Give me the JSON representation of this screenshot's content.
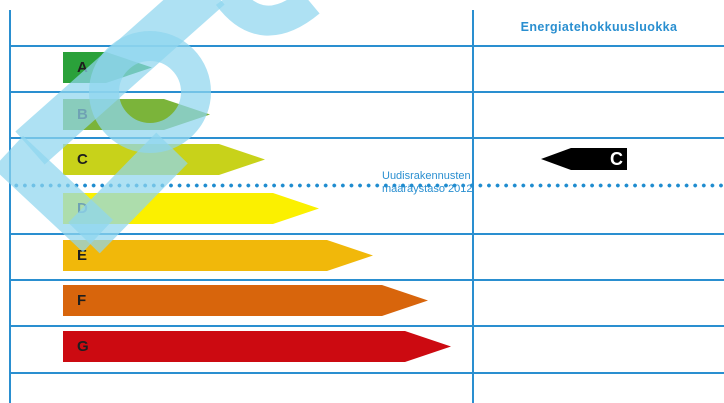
{
  "header": {
    "title": "Energiatehokkuusluokka"
  },
  "energy_classes": [
    {
      "letter": "A",
      "color": "#2aa13a",
      "length_fraction": 0.23
    },
    {
      "letter": "B",
      "color": "#7bb43a",
      "length_fraction": 0.38
    },
    {
      "letter": "C",
      "color": "#c8d21a",
      "length_fraction": 0.52
    },
    {
      "letter": "D",
      "color": "#fbf000",
      "length_fraction": 0.66
    },
    {
      "letter": "E",
      "color": "#f1b80a",
      "length_fraction": 0.8
    },
    {
      "letter": "F",
      "color": "#d8650c",
      "length_fraction": 0.94
    },
    {
      "letter": "G",
      "color": "#cc0a11",
      "length_fraction": 1.0
    }
  ],
  "reference_level": {
    "label_line1": "Uudisrakennusten",
    "label_line2": "määräystaso 2012",
    "line_color": "#1f8ccf"
  },
  "rating": {
    "letter": "C",
    "color": "#000000",
    "text_color": "#ffffff"
  },
  "colors": {
    "grid": "#2a8fd0",
    "watermark": "#8fd6ee"
  }
}
